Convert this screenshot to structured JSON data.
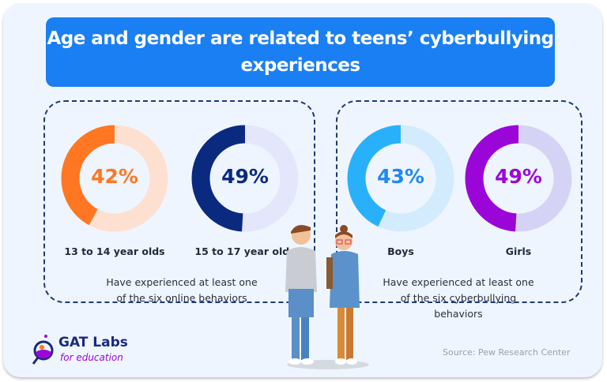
{
  "title": "Age and gender are related to teens’ cyberbullying experiences",
  "groups": [
    {
      "note": "Have experienced at least one of the six online behaviors"
    },
    {
      "note": "Have experienced at least one of the six cyberbullying behaviors"
    }
  ],
  "source": "Source: Pew Research Center",
  "logo": {
    "name": "GAT Labs",
    "tagline": "for education"
  },
  "chart_data": [
    {
      "type": "pie",
      "variant": "donut",
      "label": "13 to 14 year olds",
      "value": 42,
      "value_label": "42%",
      "colors": {
        "fill": "#ff7722",
        "track": "#fde0d0",
        "text": "#ff7722"
      }
    },
    {
      "type": "pie",
      "variant": "donut",
      "label": "15 to 17 year olds",
      "value": 49,
      "value_label": "49%",
      "colors": {
        "fill": "#0a2a80",
        "track": "#e4e6fb",
        "text": "#0a2a80"
      }
    },
    {
      "type": "pie",
      "variant": "donut",
      "label": "Boys",
      "value": 43,
      "value_label": "43%",
      "colors": {
        "fill": "#29b0fb",
        "track": "#d3ecfd",
        "text": "#1e88f5"
      }
    },
    {
      "type": "pie",
      "variant": "donut",
      "label": "Girls",
      "value": 49,
      "value_label": "49%",
      "colors": {
        "fill": "#9b06d8",
        "track": "#d5d3f5",
        "text": "#9b06d8"
      }
    }
  ]
}
